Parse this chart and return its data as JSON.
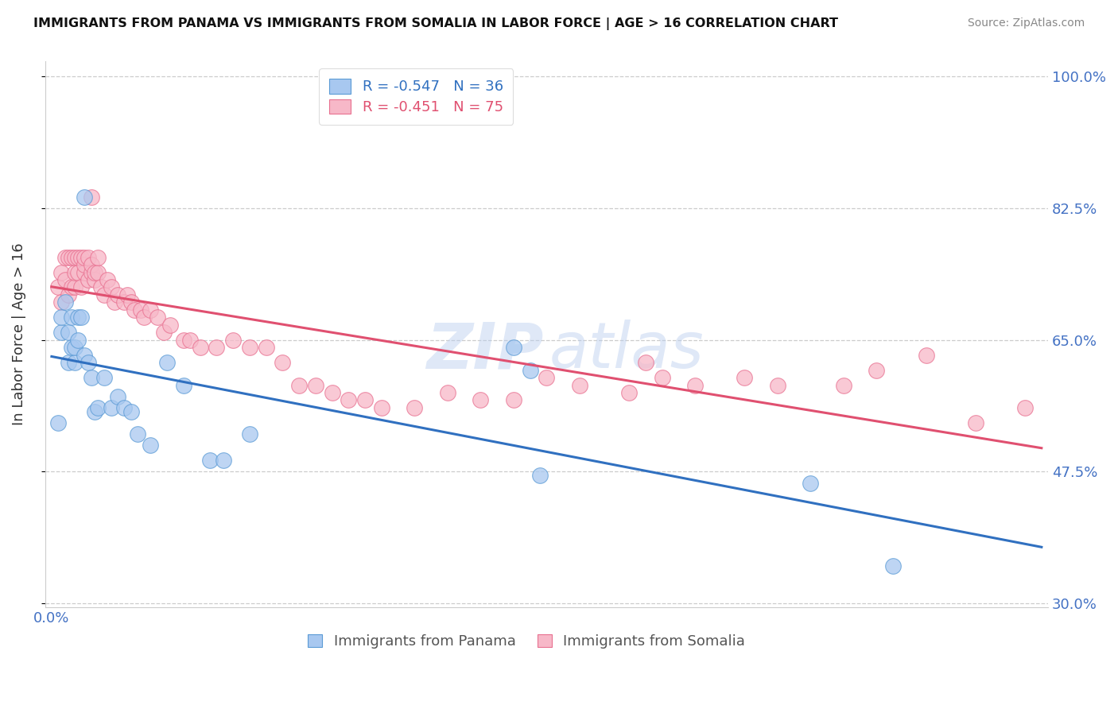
{
  "title": "IMMIGRANTS FROM PANAMA VS IMMIGRANTS FROM SOMALIA IN LABOR FORCE | AGE > 16 CORRELATION CHART",
  "source": "Source: ZipAtlas.com",
  "ylabel": "In Labor Force | Age > 16",
  "legend_label_blue": "Immigrants from Panama",
  "legend_label_pink": "Immigrants from Somalia",
  "legend_R_blue": "-0.547",
  "legend_N_blue": "36",
  "legend_R_pink": "-0.451",
  "legend_N_pink": "75",
  "xlim": [
    -0.002,
    0.302
  ],
  "ylim": [
    0.295,
    1.02
  ],
  "yticks": [
    0.3,
    0.475,
    0.65,
    0.825,
    1.0
  ],
  "ytick_labels": [
    "30.0%",
    "47.5%",
    "65.0%",
    "82.5%",
    "100.0%"
  ],
  "xticks": [
    0.0,
    0.05,
    0.1,
    0.15,
    0.2,
    0.25,
    0.3
  ],
  "blue_scatter_color": "#A8C8F0",
  "blue_edge_color": "#5B9BD5",
  "pink_scatter_color": "#F7B8C8",
  "pink_edge_color": "#E87090",
  "blue_line_color": "#3070C0",
  "pink_line_color": "#E05070",
  "axis_label_color": "#4472C4",
  "blue_x": [
    0.002,
    0.003,
    0.003,
    0.004,
    0.005,
    0.005,
    0.006,
    0.006,
    0.007,
    0.007,
    0.008,
    0.008,
    0.009,
    0.01,
    0.011,
    0.012,
    0.013,
    0.014,
    0.016,
    0.018,
    0.02,
    0.022,
    0.024,
    0.026,
    0.03,
    0.035,
    0.04,
    0.048,
    0.052,
    0.06,
    0.14,
    0.145,
    0.148,
    0.23,
    0.255,
    0.01
  ],
  "blue_y": [
    0.54,
    0.66,
    0.68,
    0.7,
    0.62,
    0.66,
    0.64,
    0.68,
    0.62,
    0.64,
    0.65,
    0.68,
    0.68,
    0.63,
    0.62,
    0.6,
    0.555,
    0.56,
    0.6,
    0.56,
    0.575,
    0.56,
    0.555,
    0.525,
    0.51,
    0.62,
    0.59,
    0.49,
    0.49,
    0.525,
    0.64,
    0.61,
    0.47,
    0.46,
    0.35,
    0.84
  ],
  "pink_x": [
    0.002,
    0.003,
    0.003,
    0.004,
    0.004,
    0.005,
    0.005,
    0.006,
    0.006,
    0.007,
    0.007,
    0.007,
    0.008,
    0.008,
    0.009,
    0.009,
    0.01,
    0.01,
    0.01,
    0.011,
    0.011,
    0.012,
    0.012,
    0.013,
    0.013,
    0.014,
    0.014,
    0.015,
    0.016,
    0.017,
    0.018,
    0.019,
    0.02,
    0.022,
    0.023,
    0.024,
    0.025,
    0.027,
    0.028,
    0.03,
    0.032,
    0.034,
    0.036,
    0.04,
    0.042,
    0.045,
    0.05,
    0.055,
    0.06,
    0.065,
    0.07,
    0.075,
    0.08,
    0.085,
    0.09,
    0.095,
    0.1,
    0.11,
    0.12,
    0.13,
    0.14,
    0.15,
    0.16,
    0.175,
    0.185,
    0.195,
    0.21,
    0.22,
    0.24,
    0.25,
    0.265,
    0.28,
    0.295,
    0.18,
    0.012
  ],
  "pink_y": [
    0.72,
    0.7,
    0.74,
    0.73,
    0.76,
    0.71,
    0.76,
    0.72,
    0.76,
    0.72,
    0.74,
    0.76,
    0.74,
    0.76,
    0.72,
    0.76,
    0.74,
    0.75,
    0.76,
    0.73,
    0.76,
    0.74,
    0.75,
    0.73,
    0.74,
    0.74,
    0.76,
    0.72,
    0.71,
    0.73,
    0.72,
    0.7,
    0.71,
    0.7,
    0.71,
    0.7,
    0.69,
    0.69,
    0.68,
    0.69,
    0.68,
    0.66,
    0.67,
    0.65,
    0.65,
    0.64,
    0.64,
    0.65,
    0.64,
    0.64,
    0.62,
    0.59,
    0.59,
    0.58,
    0.57,
    0.57,
    0.56,
    0.56,
    0.58,
    0.57,
    0.57,
    0.6,
    0.59,
    0.58,
    0.6,
    0.59,
    0.6,
    0.59,
    0.59,
    0.61,
    0.63,
    0.54,
    0.56,
    0.62,
    0.84
  ]
}
